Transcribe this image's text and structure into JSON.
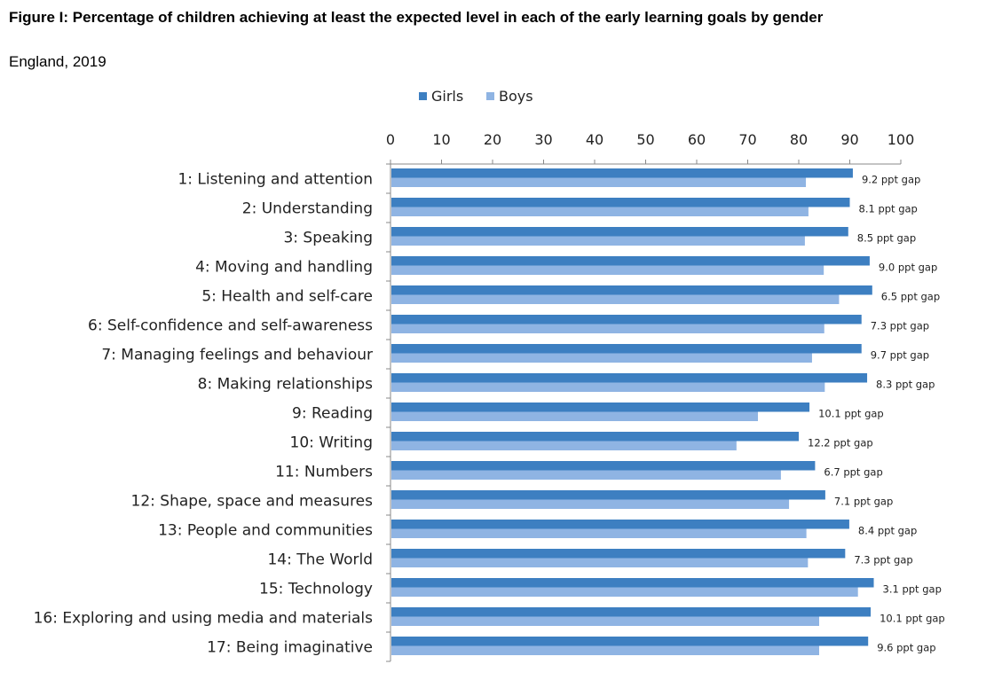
{
  "chart_data": {
    "type": "bar",
    "orientation": "horizontal",
    "title": "Figure I: Percentage of children achieving at least the expected level in each of the early learning goals by gender",
    "subtitle": "England, 2019",
    "xlim": [
      0,
      100
    ],
    "xticks": [
      0,
      10,
      20,
      30,
      40,
      50,
      60,
      70,
      80,
      90,
      100
    ],
    "legend_position": "top",
    "grid": false,
    "colors": {
      "Girls": "#3d7fc1",
      "Boys": "#8fb4e3"
    },
    "categories": [
      "1: Listening and attention",
      "2: Understanding",
      "3: Speaking",
      "4: Moving and handling",
      "5: Health and self-care",
      "6: Self-confidence and self-awareness",
      "7: Managing feelings and behaviour",
      "8: Making relationships",
      "9: Reading",
      "10: Writing",
      "11: Numbers",
      "12: Shape, space and measures",
      "13: People and communities",
      "14: The World",
      "15: Technology",
      "16: Exploring and using media and materials",
      "17: Being imaginative"
    ],
    "series": [
      {
        "name": "Girls",
        "values": [
          90.6,
          90.0,
          89.7,
          93.9,
          94.4,
          92.3,
          92.3,
          93.4,
          82.1,
          80.0,
          83.2,
          85.2,
          89.9,
          89.1,
          94.7,
          94.1,
          93.6
        ]
      },
      {
        "name": "Boys",
        "values": [
          81.4,
          81.9,
          81.2,
          84.9,
          87.9,
          85.0,
          82.6,
          85.1,
          72.0,
          67.8,
          76.5,
          78.1,
          81.5,
          81.8,
          91.6,
          84.0,
          84.0
        ]
      }
    ],
    "annotations": [
      "9.2 ppt gap",
      "8.1 ppt gap",
      "8.5 ppt gap",
      "9.0 ppt gap",
      "6.5 ppt gap",
      "7.3 ppt gap",
      "9.7 ppt gap",
      "8.3 ppt gap",
      "10.1 ppt gap",
      "12.2 ppt gap",
      "6.7 ppt gap",
      "7.1 ppt gap",
      "8.4 ppt gap",
      "7.3 ppt gap",
      "3.1 ppt gap",
      "10.1 ppt gap",
      "9.6 ppt gap"
    ]
  }
}
